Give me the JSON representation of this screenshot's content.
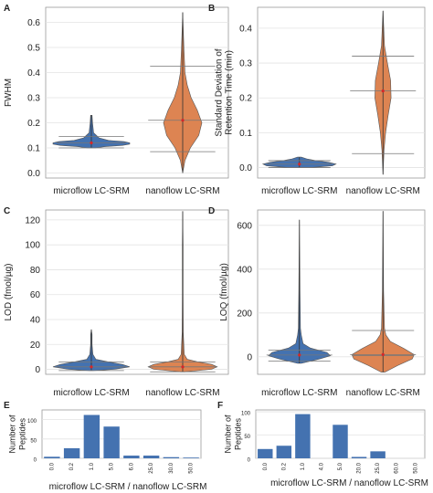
{
  "colors": {
    "microflow": "#4472b0",
    "nanoflow": "#dd8452",
    "bar": "#4472b0",
    "grid": "#e3e3e3",
    "axis": "#9a9a9a",
    "whisker": "#333333",
    "median": "#d62728"
  },
  "chart_data": [
    {
      "panel": "A",
      "type": "violin",
      "ylabel": "FWHM",
      "categories": [
        "microflow LC-SRM",
        "nanoflow LC-SRM"
      ],
      "ylim": [
        -0.02,
        0.66
      ],
      "yticks": [
        0.0,
        0.1,
        0.2,
        0.3,
        0.4,
        0.5,
        0.6
      ],
      "ytick_labels": [
        "0.0",
        "0.1",
        "0.2",
        "0.3",
        "0.4",
        "0.5",
        "0.6"
      ],
      "grid": true,
      "series": [
        {
          "min": 0.1,
          "max": 0.23,
          "mean": 0.12,
          "sd_low": 0.1,
          "sd_high": 0.145,
          "median": 0.12,
          "density": [
            [
              0.1,
              0.1
            ],
            [
              0.105,
              0.35
            ],
            [
              0.11,
              0.8
            ],
            [
              0.115,
              1.0
            ],
            [
              0.12,
              1.0
            ],
            [
              0.125,
              0.85
            ],
            [
              0.13,
              0.45
            ],
            [
              0.14,
              0.2
            ],
            [
              0.16,
              0.06
            ],
            [
              0.2,
              0.03
            ],
            [
              0.23,
              0.02
            ]
          ]
        },
        {
          "min": 0.0,
          "max": 0.64,
          "mean": 0.21,
          "sd_low": 0.085,
          "sd_high": 0.425,
          "median": 0.21,
          "density": [
            [
              0.0,
              0.0
            ],
            [
              0.05,
              0.06
            ],
            [
              0.1,
              0.2
            ],
            [
              0.15,
              0.42
            ],
            [
              0.2,
              0.5
            ],
            [
              0.25,
              0.38
            ],
            [
              0.3,
              0.22
            ],
            [
              0.35,
              0.12
            ],
            [
              0.4,
              0.06
            ],
            [
              0.5,
              0.03
            ],
            [
              0.64,
              0.0
            ]
          ]
        }
      ]
    },
    {
      "panel": "B",
      "type": "violin",
      "ylabel": "Standard Deviation of\nRetention Time (min)",
      "categories": [
        "microflow LC-SRM",
        "nanoflow LC-SRM"
      ],
      "ylim": [
        -0.03,
        0.46
      ],
      "yticks": [
        0.0,
        0.1,
        0.2,
        0.3,
        0.4
      ],
      "ytick_labels": [
        "0.0",
        "0.1",
        "0.2",
        "0.3",
        "0.4"
      ],
      "grid": true,
      "series": [
        {
          "min": 0.0,
          "max": 0.03,
          "mean": 0.01,
          "sd_low": 0.0,
          "sd_high": 0.02,
          "median": 0.01,
          "density": [
            [
              0.0,
              0.3
            ],
            [
              0.005,
              0.9
            ],
            [
              0.01,
              1.0
            ],
            [
              0.015,
              0.8
            ],
            [
              0.02,
              0.45
            ],
            [
              0.025,
              0.2
            ],
            [
              0.03,
              0.05
            ]
          ]
        },
        {
          "min": -0.02,
          "max": 0.45,
          "mean": 0.22,
          "sd_low": 0.04,
          "sd_high": 0.32,
          "median": 0.22,
          "density": [
            [
              -0.02,
              0.0
            ],
            [
              0.05,
              0.03
            ],
            [
              0.1,
              0.07
            ],
            [
              0.15,
              0.14
            ],
            [
              0.2,
              0.22
            ],
            [
              0.25,
              0.21
            ],
            [
              0.3,
              0.12
            ],
            [
              0.35,
              0.04
            ],
            [
              0.4,
              0.02
            ],
            [
              0.45,
              0.0
            ]
          ]
        }
      ]
    },
    {
      "panel": "C",
      "type": "violin",
      "ylabel": "LOD (fmol/µg)",
      "categories": [
        "microflow LC-SRM",
        "nanoflow LC-SRM"
      ],
      "ylim": [
        -4,
        128
      ],
      "yticks": [
        0,
        20,
        40,
        60,
        80,
        100,
        120
      ],
      "ytick_labels": [
        "0",
        "20",
        "40",
        "60",
        "80",
        "100",
        "120"
      ],
      "grid": true,
      "series": [
        {
          "min": -1,
          "max": 32,
          "mean": 2,
          "sd_low": -1,
          "sd_high": 6,
          "median": 2,
          "density": [
            [
              -1,
              0.05
            ],
            [
              0,
              0.6
            ],
            [
              2,
              1.0
            ],
            [
              4,
              0.8
            ],
            [
              6,
              0.45
            ],
            [
              8,
              0.12
            ],
            [
              12,
              0.04
            ],
            [
              20,
              0.02
            ],
            [
              28,
              0.02
            ],
            [
              32,
              0.0
            ]
          ]
        },
        {
          "min": -2,
          "max": 127,
          "mean": 2,
          "sd_low": -2,
          "sd_high": 6,
          "median": 2,
          "density": [
            [
              -2,
              0.05
            ],
            [
              0,
              0.75
            ],
            [
              2,
              0.9
            ],
            [
              4,
              0.75
            ],
            [
              6,
              0.4
            ],
            [
              8,
              0.12
            ],
            [
              12,
              0.04
            ],
            [
              30,
              0.015
            ],
            [
              60,
              0.01
            ],
            [
              100,
              0.01
            ],
            [
              127,
              0.0
            ]
          ]
        }
      ]
    },
    {
      "panel": "D",
      "type": "violin",
      "ylabel": "LOQ (fmol/µg)",
      "categories": [
        "microflow LC-SRM",
        "nanoflow LC-SRM"
      ],
      "ylim": [
        -80,
        670
      ],
      "yticks": [
        0,
        200,
        400,
        600
      ],
      "ytick_labels": [
        "0",
        "200",
        "400",
        "600"
      ],
      "grid": true,
      "series": [
        {
          "min": -30,
          "max": 625,
          "mean": 8,
          "sd_low": -20,
          "sd_high": 30,
          "median": 8,
          "density": [
            [
              -30,
              0.05
            ],
            [
              -10,
              0.55
            ],
            [
              5,
              0.85
            ],
            [
              20,
              0.75
            ],
            [
              40,
              0.3
            ],
            [
              60,
              0.1
            ],
            [
              100,
              0.05
            ],
            [
              130,
              0.03
            ],
            [
              300,
              0.015
            ],
            [
              625,
              0.0
            ]
          ]
        },
        {
          "min": -70,
          "max": 665,
          "mean": 10,
          "sd_low": 5,
          "sd_high": 120,
          "median": 10,
          "density": [
            [
              -70,
              0.05
            ],
            [
              -40,
              0.4
            ],
            [
              -10,
              0.8
            ],
            [
              10,
              0.85
            ],
            [
              40,
              0.55
            ],
            [
              70,
              0.2
            ],
            [
              100,
              0.08
            ],
            [
              130,
              0.04
            ],
            [
              300,
              0.015
            ],
            [
              665,
              0.0
            ]
          ]
        }
      ]
    },
    {
      "panel": "E",
      "type": "bar",
      "ylabel": "Number of\nPeptides",
      "xlabel": "",
      "categories": [
        "0.0",
        "0.2",
        "1.0",
        "5.0",
        "6.0",
        "25.0",
        "30.0",
        "50.0"
      ],
      "values": [
        4,
        26,
        112,
        82,
        7,
        7,
        3,
        1
      ],
      "ylim": [
        0,
        125
      ],
      "yticks": [
        0,
        50,
        100
      ],
      "ytick_labels": [
        "0",
        "50",
        "100"
      ],
      "grid": true
    },
    {
      "panel": "F",
      "type": "bar",
      "ylabel": "Number of\nPeptides",
      "xlabel": "microflow LC-SRM / nanoflow LC-SRM",
      "categories": [
        "0.0",
        "0.2",
        "1.0",
        "4.0",
        "5.0",
        "20.0",
        "25.0",
        "60.0",
        "50.0"
      ],
      "values": [
        20,
        27,
        95,
        0,
        72,
        3,
        15,
        0,
        0
      ],
      "ylim": [
        0,
        104
      ],
      "yticks": [
        0,
        50,
        100
      ],
      "ytick_labels": [
        "0",
        "50",
        "100"
      ],
      "grid": true
    }
  ],
  "footer": {
    "left_xlabel": "microflow LC-SRM / nanoflow LC-SRM"
  }
}
